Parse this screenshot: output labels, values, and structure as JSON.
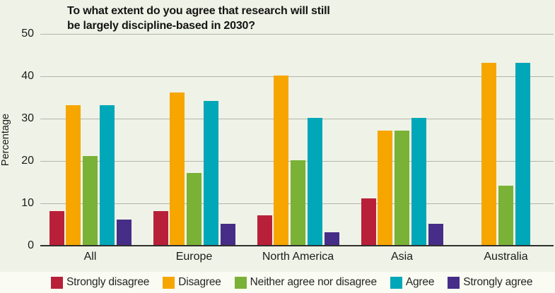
{
  "chart_data": {
    "type": "bar",
    "title": "To what extent do you agree that research will still be largely discipline-based in 2030?",
    "title_lines": [
      "To what extent do you agree that research will still",
      "be largely discipline-based in 2030?"
    ],
    "ylabel": "Percentage",
    "xlabel": "",
    "categories": [
      "All",
      "Europe",
      "North America",
      "Asia",
      "Australia"
    ],
    "series": [
      {
        "name": "Strongly disagree",
        "color": "#b8203a",
        "values": [
          8,
          8,
          7,
          11,
          0
        ]
      },
      {
        "name": "Disagree",
        "color": "#f7a600",
        "values": [
          33,
          36,
          40,
          27,
          43
        ]
      },
      {
        "name": "Neither agree nor disagree",
        "color": "#79b236",
        "values": [
          21,
          17,
          20,
          27,
          14
        ]
      },
      {
        "name": "Agree",
        "color": "#00a7b9",
        "values": [
          33,
          34,
          30,
          30,
          43
        ]
      },
      {
        "name": "Strongly agree",
        "color": "#462d87",
        "values": [
          6,
          5,
          3,
          5,
          0
        ]
      }
    ],
    "ylim": [
      0,
      50
    ],
    "yticks": [
      0,
      10,
      20,
      30,
      40,
      50
    ],
    "grid": true,
    "legend_position": "bottom",
    "colors": {
      "background": "#eff2e6",
      "legend_band": "#fafbf2",
      "gridline": "#b2b5a9",
      "axis": "#2f2f2d",
      "text": "#1c1c1c"
    }
  }
}
